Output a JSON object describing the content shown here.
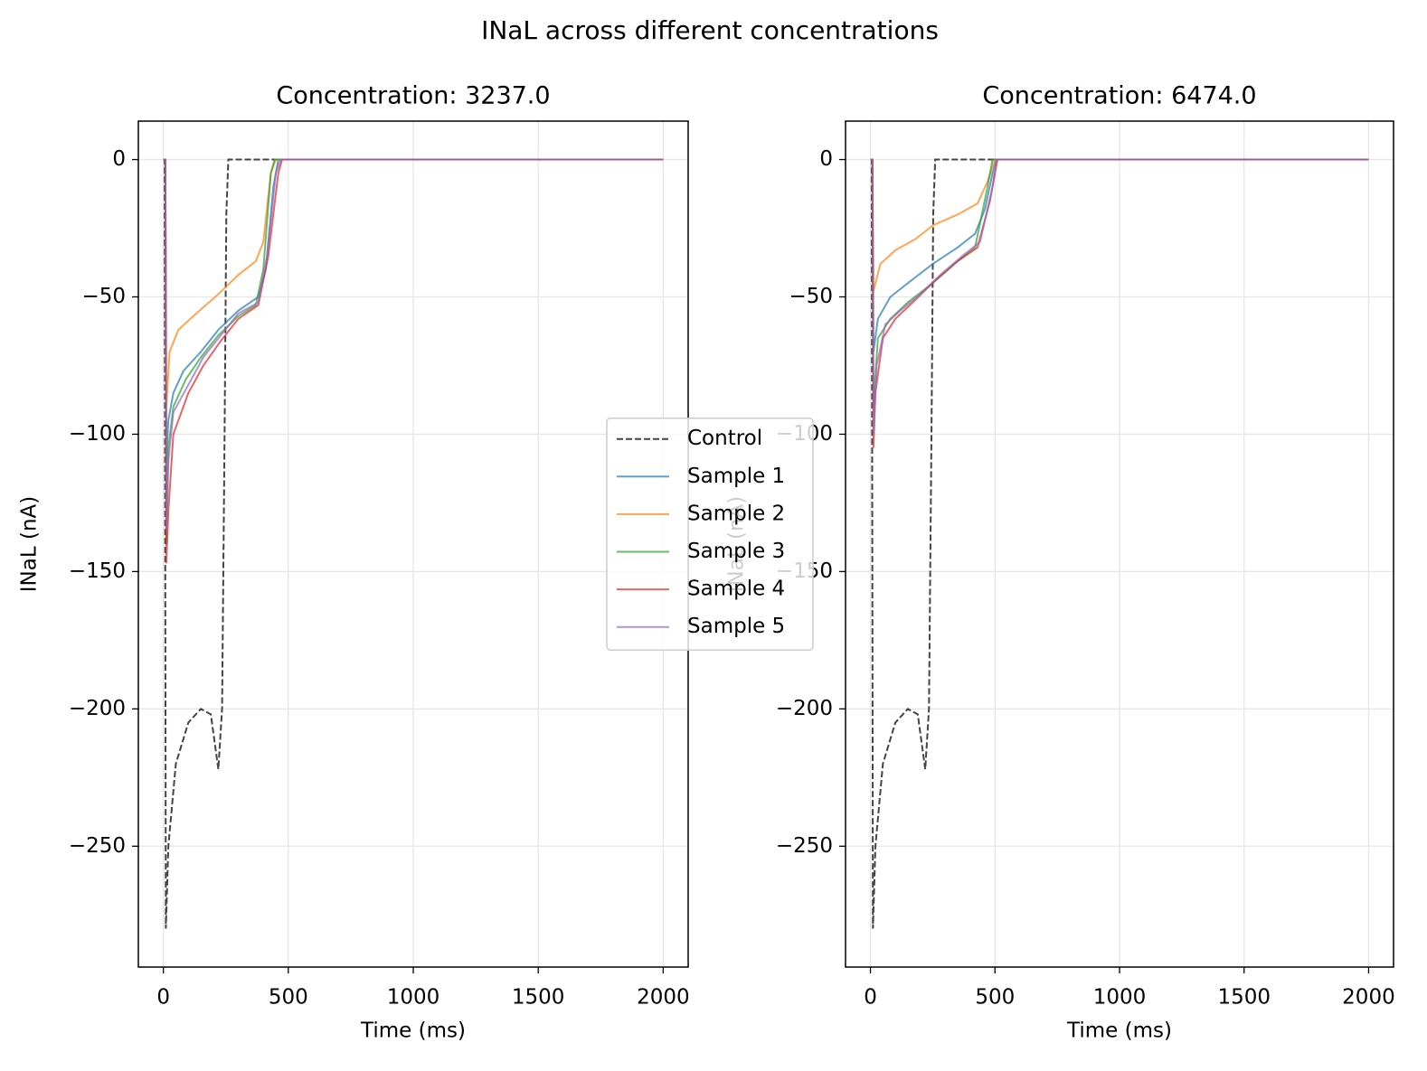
{
  "title": "INaL across different concentrations",
  "chart_data": [
    {
      "type": "line",
      "title": "Concentration: 3237.0",
      "xlabel": "Time (ms)",
      "ylabel": "INaL (nA)",
      "xlim": [
        -100,
        2100
      ],
      "ylim": [
        -294,
        14
      ],
      "xticks": [
        0,
        500,
        1000,
        1500,
        2000
      ],
      "yticks": [
        {
          "value": -250,
          "label": "−250"
        },
        {
          "value": -200,
          "label": "−200"
        },
        {
          "value": -150,
          "label": "−150"
        },
        {
          "value": -100,
          "label": "−100"
        },
        {
          "value": -50,
          "label": "−50"
        },
        0
      ],
      "grid": true,
      "legend": "center",
      "series": [
        {
          "name": "Control",
          "color": "#444444",
          "linestyle": "dashed",
          "x": [
            0,
            5,
            10,
            20,
            50,
            100,
            150,
            190,
            220,
            235,
            245,
            252,
            260,
            2000
          ],
          "values": [
            0,
            0,
            -280,
            -250,
            -220,
            -205,
            -200,
            -202,
            -222,
            -200,
            -100,
            -20,
            0,
            0
          ]
        },
        {
          "name": "Sample 1",
          "color": "#1f77b4",
          "linestyle": "solid",
          "x": [
            0,
            8,
            12,
            20,
            40,
            80,
            150,
            220,
            300,
            380,
            410,
            440,
            460,
            2000
          ],
          "values": [
            0,
            0,
            -110,
            -95,
            -85,
            -77,
            -70,
            -62,
            -55,
            -50,
            -40,
            -10,
            0,
            0
          ]
        },
        {
          "name": "Sample 2",
          "color": "#ff7f0e",
          "linestyle": "solid",
          "x": [
            0,
            8,
            12,
            25,
            60,
            120,
            220,
            300,
            370,
            400,
            430,
            450,
            2000
          ],
          "values": [
            0,
            0,
            -90,
            -70,
            -62,
            -57,
            -49,
            -42,
            -37,
            -30,
            -5,
            0,
            0
          ]
        },
        {
          "name": "Sample 3",
          "color": "#2ca02c",
          "linestyle": "solid",
          "x": [
            0,
            8,
            12,
            20,
            40,
            90,
            150,
            220,
            300,
            370,
            400,
            430,
            445,
            2000
          ],
          "values": [
            0,
            0,
            -140,
            -105,
            -90,
            -80,
            -72,
            -64,
            -57,
            -53,
            -40,
            -5,
            0,
            0
          ]
        },
        {
          "name": "Sample 4",
          "color": "#d62728",
          "linestyle": "solid",
          "x": [
            0,
            8,
            12,
            20,
            40,
            100,
            160,
            230,
            300,
            380,
            420,
            460,
            475,
            2000
          ],
          "values": [
            0,
            0,
            -147,
            -128,
            -100,
            -85,
            -75,
            -66,
            -58,
            -53,
            -35,
            -5,
            0,
            0
          ]
        },
        {
          "name": "Sample 5",
          "color": "#9467bd",
          "linestyle": "solid",
          "x": [
            0,
            8,
            12,
            20,
            40,
            100,
            160,
            230,
            300,
            380,
            415,
            450,
            470,
            2000
          ],
          "values": [
            0,
            0,
            -135,
            -110,
            -92,
            -82,
            -72,
            -64,
            -56,
            -52,
            -35,
            -5,
            0,
            0
          ]
        }
      ]
    },
    {
      "type": "line",
      "title": "Concentration: 6474.0",
      "xlabel": "Time (ms)",
      "ylabel": "INaL (nA)",
      "xlim": [
        -100,
        2100
      ],
      "ylim": [
        -294,
        14
      ],
      "xticks": [
        0,
        500,
        1000,
        1500,
        2000
      ],
      "yticks": [
        {
          "value": -250,
          "label": "−250"
        },
        {
          "value": -200,
          "label": "−200"
        },
        {
          "value": -150,
          "label": "−150"
        },
        {
          "value": -100,
          "label": "−100"
        },
        {
          "value": -50,
          "label": "−50"
        },
        0
      ],
      "grid": true,
      "series": [
        {
          "name": "Control",
          "color": "#444444",
          "linestyle": "dashed",
          "x": [
            0,
            5,
            10,
            20,
            50,
            100,
            150,
            190,
            220,
            235,
            245,
            252,
            260,
            2000
          ],
          "values": [
            0,
            0,
            -280,
            -250,
            -220,
            -205,
            -200,
            -202,
            -222,
            -200,
            -100,
            -20,
            0,
            0
          ]
        },
        {
          "name": "Sample 1",
          "color": "#1f77b4",
          "linestyle": "solid",
          "x": [
            0,
            8,
            12,
            30,
            80,
            150,
            250,
            350,
            420,
            460,
            490,
            505,
            2000
          ],
          "values": [
            0,
            0,
            -70,
            -58,
            -50,
            -45,
            -38,
            -32,
            -27,
            -18,
            -5,
            0,
            0
          ]
        },
        {
          "name": "Sample 2",
          "color": "#ff7f0e",
          "linestyle": "solid",
          "x": [
            0,
            8,
            12,
            40,
            100,
            180,
            250,
            350,
            430,
            470,
            500,
            2000
          ],
          "values": [
            0,
            0,
            -48,
            -38,
            -33,
            -29,
            -24,
            -20,
            -16,
            -8,
            0,
            0
          ]
        },
        {
          "name": "Sample 3",
          "color": "#2ca02c",
          "linestyle": "solid",
          "x": [
            0,
            8,
            12,
            30,
            80,
            150,
            250,
            350,
            420,
            470,
            490,
            2000
          ],
          "values": [
            0,
            0,
            -90,
            -65,
            -58,
            -52,
            -45,
            -37,
            -32,
            -10,
            0,
            0
          ]
        },
        {
          "name": "Sample 4",
          "color": "#d62728",
          "linestyle": "solid",
          "x": [
            0,
            8,
            12,
            20,
            50,
            100,
            170,
            260,
            350,
            430,
            480,
            510,
            2000
          ],
          "values": [
            0,
            0,
            -105,
            -85,
            -65,
            -58,
            -52,
            -44,
            -37,
            -32,
            -15,
            0,
            0
          ]
        },
        {
          "name": "Sample 5",
          "color": "#9467bd",
          "linestyle": "solid",
          "x": [
            0,
            8,
            12,
            25,
            60,
            120,
            200,
            280,
            370,
            440,
            490,
            505,
            2000
          ],
          "values": [
            0,
            0,
            -100,
            -75,
            -60,
            -55,
            -49,
            -42,
            -35,
            -30,
            -10,
            0,
            0
          ]
        }
      ]
    }
  ]
}
